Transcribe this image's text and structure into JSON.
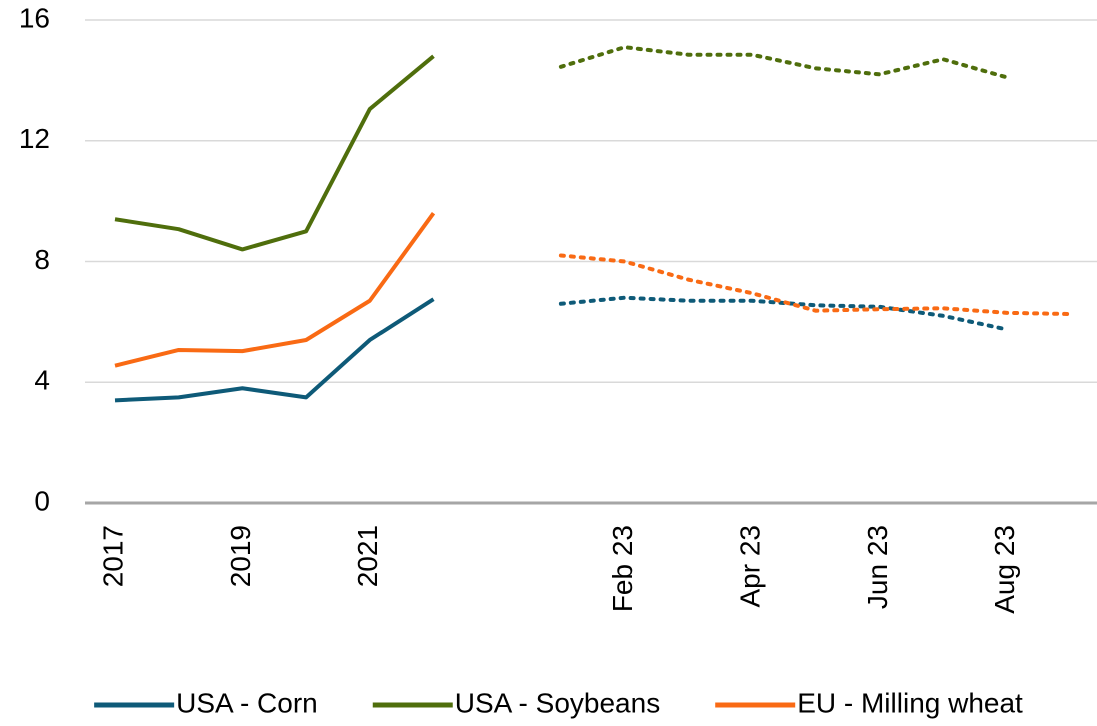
{
  "chart_data": {
    "type": "line",
    "categories": [
      "2017",
      null,
      "2019",
      null,
      "2021",
      null,
      null,
      null,
      "Feb 23",
      null,
      "Apr 23",
      null,
      "Jun 23",
      null,
      "Aug 23",
      null
    ],
    "series": [
      {
        "name": "USA - Corn",
        "color": "#0e5a78",
        "linestyle": [
          "solid",
          "dotted"
        ],
        "values": [
          3.4,
          3.5,
          3.8,
          3.5,
          5.4,
          6.75,
          null,
          6.6,
          6.8,
          6.7,
          6.7,
          6.55,
          6.5,
          6.2,
          5.75,
          null
        ]
      },
      {
        "name": "USA - Soybeans",
        "color": "#4f6e0c",
        "linestyle": [
          "solid",
          "dotted"
        ],
        "values": [
          9.4,
          9.07,
          8.4,
          9.0,
          13.05,
          14.8,
          null,
          14.45,
          15.1,
          14.85,
          14.85,
          14.4,
          14.2,
          14.7,
          14.1,
          null
        ]
      },
      {
        "name": "EU - Milling wheat",
        "color": "#f96a14",
        "linestyle": [
          "solid",
          "dotted"
        ],
        "values": [
          4.55,
          5.07,
          5.03,
          5.4,
          6.7,
          9.6,
          null,
          8.2,
          8.0,
          7.4,
          6.95,
          6.37,
          6.42,
          6.45,
          6.3,
          6.26
        ]
      }
    ],
    "ylim": [
      0,
      16
    ],
    "yticks": [
      0,
      4,
      8,
      12,
      16
    ],
    "grid": true,
    "legend": "bottom"
  }
}
